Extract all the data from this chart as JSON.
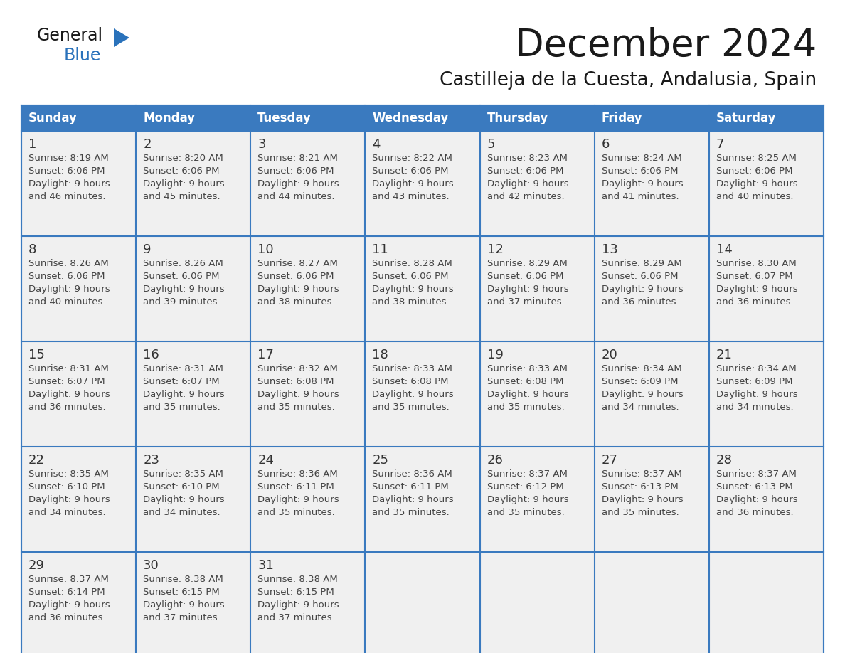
{
  "title": "December 2024",
  "subtitle": "Castilleja de la Cuesta, Andalusia, Spain",
  "header_color": "#3a7abf",
  "header_text_color": "#ffffff",
  "cell_bg_color": "#f0f0f0",
  "day_number_color": "#333333",
  "text_color": "#444444",
  "border_color": "#3a7abf",
  "days_of_week": [
    "Sunday",
    "Monday",
    "Tuesday",
    "Wednesday",
    "Thursday",
    "Friday",
    "Saturday"
  ],
  "calendar_data": [
    [
      {
        "day": "1",
        "sunrise": "8:19 AM",
        "sunset": "6:06 PM",
        "daylight_h": "9 hours",
        "daylight_m": "and 46 minutes."
      },
      {
        "day": "2",
        "sunrise": "8:20 AM",
        "sunset": "6:06 PM",
        "daylight_h": "9 hours",
        "daylight_m": "and 45 minutes."
      },
      {
        "day": "3",
        "sunrise": "8:21 AM",
        "sunset": "6:06 PM",
        "daylight_h": "9 hours",
        "daylight_m": "and 44 minutes."
      },
      {
        "day": "4",
        "sunrise": "8:22 AM",
        "sunset": "6:06 PM",
        "daylight_h": "9 hours",
        "daylight_m": "and 43 minutes."
      },
      {
        "day": "5",
        "sunrise": "8:23 AM",
        "sunset": "6:06 PM",
        "daylight_h": "9 hours",
        "daylight_m": "and 42 minutes."
      },
      {
        "day": "6",
        "sunrise": "8:24 AM",
        "sunset": "6:06 PM",
        "daylight_h": "9 hours",
        "daylight_m": "and 41 minutes."
      },
      {
        "day": "7",
        "sunrise": "8:25 AM",
        "sunset": "6:06 PM",
        "daylight_h": "9 hours",
        "daylight_m": "and 40 minutes."
      }
    ],
    [
      {
        "day": "8",
        "sunrise": "8:26 AM",
        "sunset": "6:06 PM",
        "daylight_h": "9 hours",
        "daylight_m": "and 40 minutes."
      },
      {
        "day": "9",
        "sunrise": "8:26 AM",
        "sunset": "6:06 PM",
        "daylight_h": "9 hours",
        "daylight_m": "and 39 minutes."
      },
      {
        "day": "10",
        "sunrise": "8:27 AM",
        "sunset": "6:06 PM",
        "daylight_h": "9 hours",
        "daylight_m": "and 38 minutes."
      },
      {
        "day": "11",
        "sunrise": "8:28 AM",
        "sunset": "6:06 PM",
        "daylight_h": "9 hours",
        "daylight_m": "and 38 minutes."
      },
      {
        "day": "12",
        "sunrise": "8:29 AM",
        "sunset": "6:06 PM",
        "daylight_h": "9 hours",
        "daylight_m": "and 37 minutes."
      },
      {
        "day": "13",
        "sunrise": "8:29 AM",
        "sunset": "6:06 PM",
        "daylight_h": "9 hours",
        "daylight_m": "and 36 minutes."
      },
      {
        "day": "14",
        "sunrise": "8:30 AM",
        "sunset": "6:07 PM",
        "daylight_h": "9 hours",
        "daylight_m": "and 36 minutes."
      }
    ],
    [
      {
        "day": "15",
        "sunrise": "8:31 AM",
        "sunset": "6:07 PM",
        "daylight_h": "9 hours",
        "daylight_m": "and 36 minutes."
      },
      {
        "day": "16",
        "sunrise": "8:31 AM",
        "sunset": "6:07 PM",
        "daylight_h": "9 hours",
        "daylight_m": "and 35 minutes."
      },
      {
        "day": "17",
        "sunrise": "8:32 AM",
        "sunset": "6:08 PM",
        "daylight_h": "9 hours",
        "daylight_m": "and 35 minutes."
      },
      {
        "day": "18",
        "sunrise": "8:33 AM",
        "sunset": "6:08 PM",
        "daylight_h": "9 hours",
        "daylight_m": "and 35 minutes."
      },
      {
        "day": "19",
        "sunrise": "8:33 AM",
        "sunset": "6:08 PM",
        "daylight_h": "9 hours",
        "daylight_m": "and 35 minutes."
      },
      {
        "day": "20",
        "sunrise": "8:34 AM",
        "sunset": "6:09 PM",
        "daylight_h": "9 hours",
        "daylight_m": "and 34 minutes."
      },
      {
        "day": "21",
        "sunrise": "8:34 AM",
        "sunset": "6:09 PM",
        "daylight_h": "9 hours",
        "daylight_m": "and 34 minutes."
      }
    ],
    [
      {
        "day": "22",
        "sunrise": "8:35 AM",
        "sunset": "6:10 PM",
        "daylight_h": "9 hours",
        "daylight_m": "and 34 minutes."
      },
      {
        "day": "23",
        "sunrise": "8:35 AM",
        "sunset": "6:10 PM",
        "daylight_h": "9 hours",
        "daylight_m": "and 34 minutes."
      },
      {
        "day": "24",
        "sunrise": "8:36 AM",
        "sunset": "6:11 PM",
        "daylight_h": "9 hours",
        "daylight_m": "and 35 minutes."
      },
      {
        "day": "25",
        "sunrise": "8:36 AM",
        "sunset": "6:11 PM",
        "daylight_h": "9 hours",
        "daylight_m": "and 35 minutes."
      },
      {
        "day": "26",
        "sunrise": "8:37 AM",
        "sunset": "6:12 PM",
        "daylight_h": "9 hours",
        "daylight_m": "and 35 minutes."
      },
      {
        "day": "27",
        "sunrise": "8:37 AM",
        "sunset": "6:13 PM",
        "daylight_h": "9 hours",
        "daylight_m": "and 35 minutes."
      },
      {
        "day": "28",
        "sunrise": "8:37 AM",
        "sunset": "6:13 PM",
        "daylight_h": "9 hours",
        "daylight_m": "and 36 minutes."
      }
    ],
    [
      {
        "day": "29",
        "sunrise": "8:37 AM",
        "sunset": "6:14 PM",
        "daylight_h": "9 hours",
        "daylight_m": "and 36 minutes."
      },
      {
        "day": "30",
        "sunrise": "8:38 AM",
        "sunset": "6:15 PM",
        "daylight_h": "9 hours",
        "daylight_m": "and 37 minutes."
      },
      {
        "day": "31",
        "sunrise": "8:38 AM",
        "sunset": "6:15 PM",
        "daylight_h": "9 hours",
        "daylight_m": "and 37 minutes."
      },
      null,
      null,
      null,
      null
    ]
  ]
}
